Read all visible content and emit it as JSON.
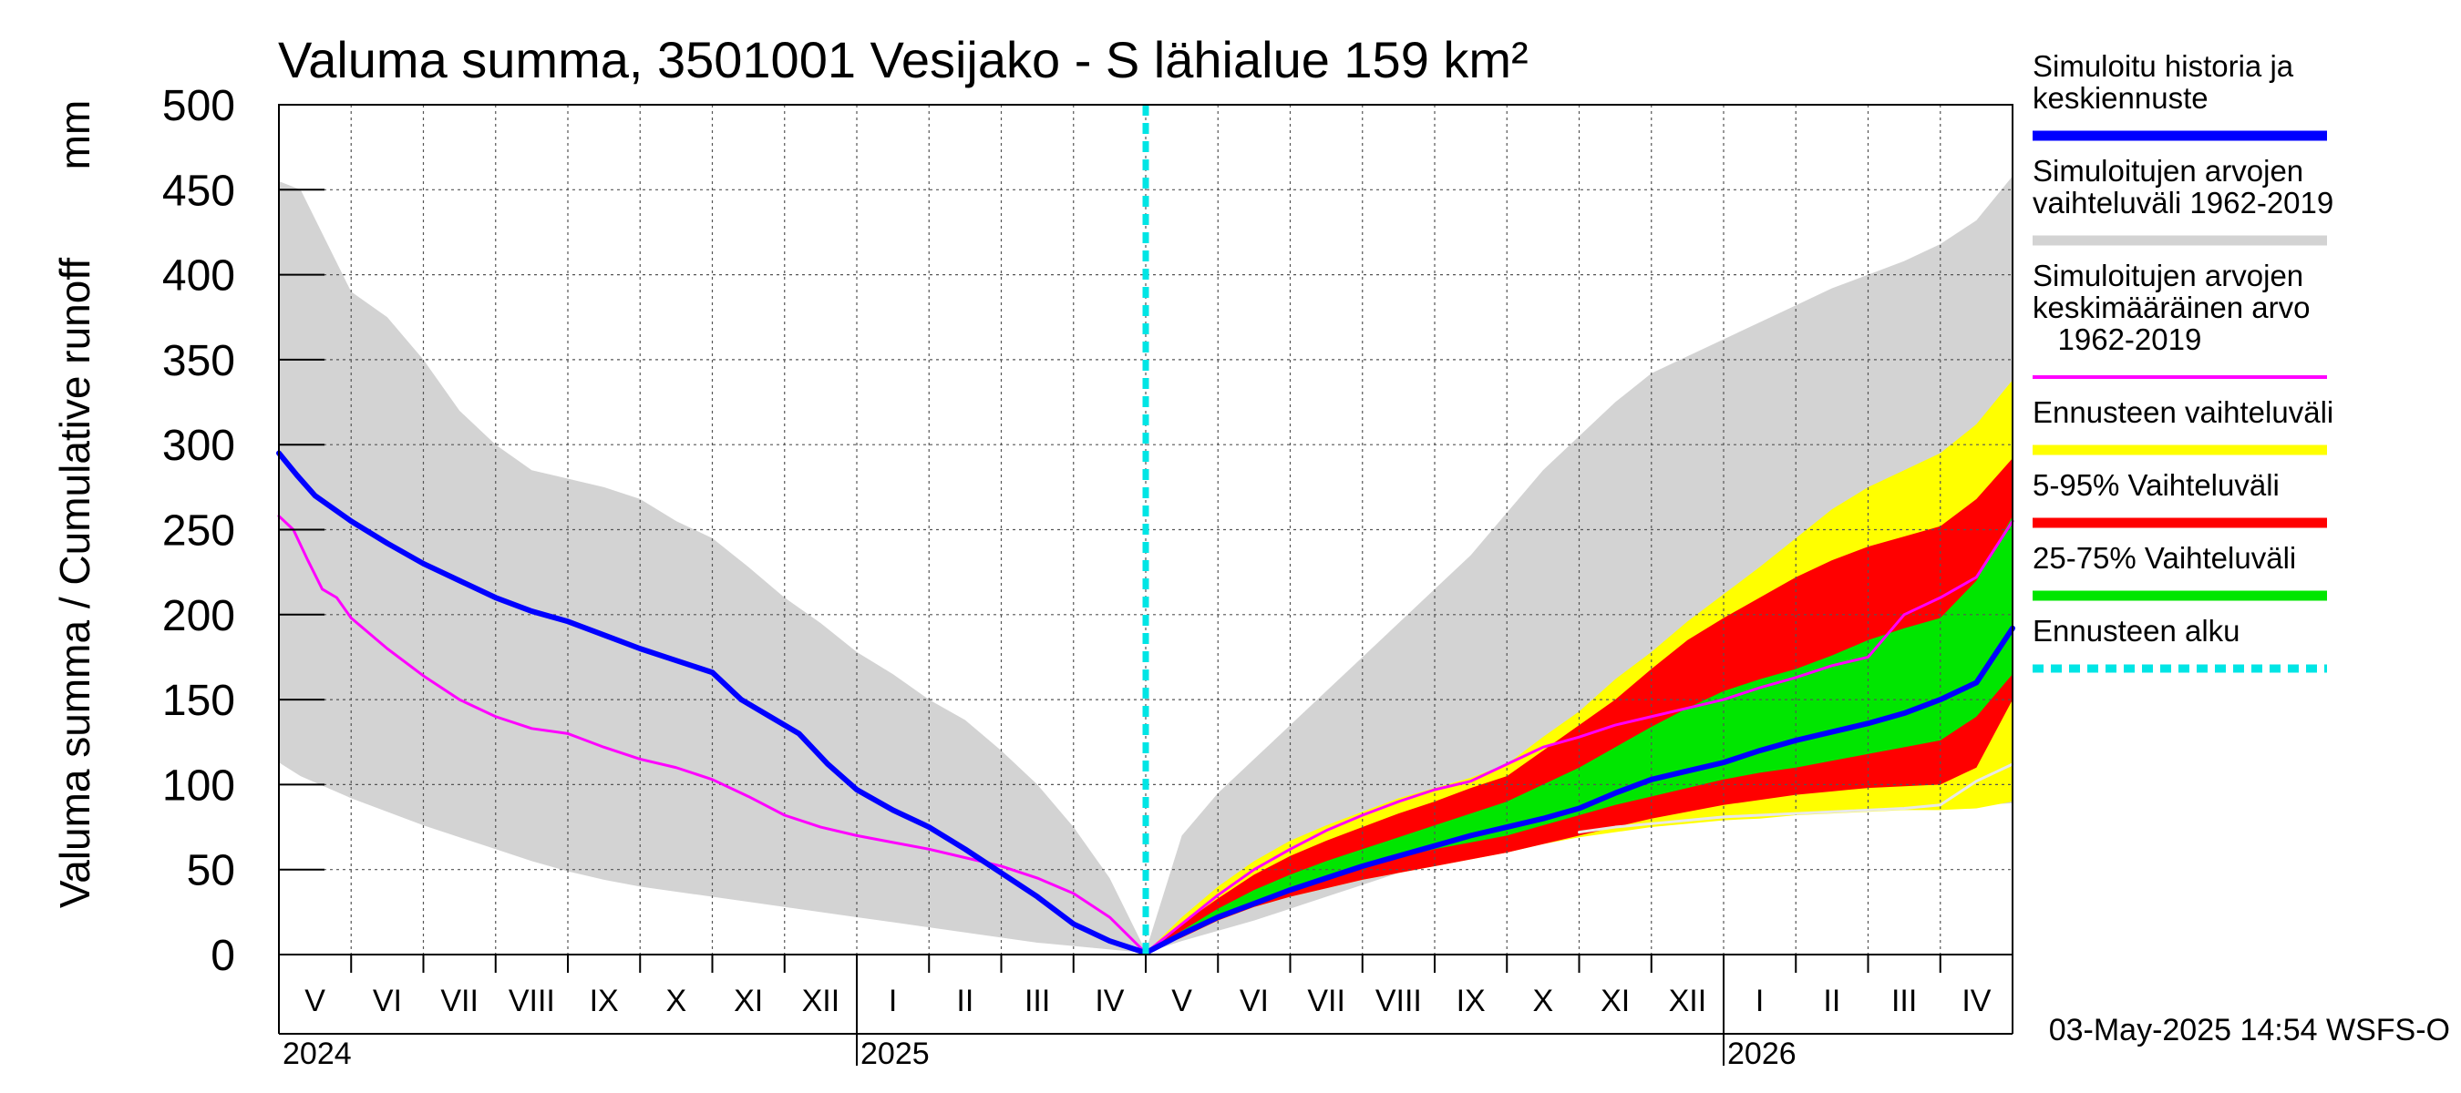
{
  "chart_data": {
    "type": "area",
    "title": "Valuma summa, 3501001 Vesijako - S lähialue 159 km²",
    "ylabel": "Valuma summa / Cumulative runoff",
    "yunit": "mm",
    "ylim": [
      0,
      500
    ],
    "yticks": [
      0,
      50,
      100,
      150,
      200,
      250,
      300,
      350,
      400,
      450,
      500
    ],
    "grid": true,
    "legend_position": "right",
    "x_unit": "months since 1 May 2024",
    "xlim": [
      0,
      24
    ],
    "forecast_start": 12,
    "months": [
      {
        "label": "V",
        "x": 0
      },
      {
        "label": "VI",
        "x": 1
      },
      {
        "label": "VII",
        "x": 2
      },
      {
        "label": "VIII",
        "x": 3
      },
      {
        "label": "IX",
        "x": 4
      },
      {
        "label": "X",
        "x": 5
      },
      {
        "label": "XI",
        "x": 6
      },
      {
        "label": "XII",
        "x": 7
      },
      {
        "label": "I",
        "x": 8
      },
      {
        "label": "II",
        "x": 9
      },
      {
        "label": "III",
        "x": 10
      },
      {
        "label": "IV",
        "x": 11
      },
      {
        "label": "V",
        "x": 12
      },
      {
        "label": "VI",
        "x": 13
      },
      {
        "label": "VII",
        "x": 14
      },
      {
        "label": "VIII",
        "x": 15
      },
      {
        "label": "IX",
        "x": 16
      },
      {
        "label": "X",
        "x": 17
      },
      {
        "label": "XI",
        "x": 18
      },
      {
        "label": "XII",
        "x": 19
      },
      {
        "label": "I",
        "x": 20
      },
      {
        "label": "II",
        "x": 21
      },
      {
        "label": "III",
        "x": 22
      },
      {
        "label": "IV",
        "x": 23
      }
    ],
    "years": [
      {
        "label": "2024",
        "x": 0
      },
      {
        "label": "2025",
        "x": 8
      },
      {
        "label": "2026",
        "x": 20
      }
    ],
    "series": [
      {
        "name": "Simuloitujen arvojen vaihteluväli 1962-2019",
        "kind": "band",
        "color": "#d3d3d3",
        "x": [
          0,
          0.3,
          1,
          1.5,
          2,
          2.5,
          3,
          3.5,
          4,
          4.5,
          5,
          5.5,
          6,
          6.5,
          7,
          7.5,
          8,
          8.5,
          9,
          9.5,
          10,
          10.5,
          11,
          11.5,
          12,
          12.5,
          13,
          13.5,
          14,
          14.5,
          15,
          15.5,
          16,
          16.5,
          17,
          17.5,
          18,
          18.5,
          19,
          19.5,
          20,
          20.5,
          21,
          21.5,
          22,
          22.5,
          23,
          23.5,
          24
        ],
        "upper": [
          455,
          450,
          390,
          375,
          350,
          320,
          300,
          285,
          280,
          275,
          268,
          255,
          245,
          228,
          210,
          195,
          178,
          165,
          150,
          138,
          120,
          100,
          75,
          45,
          2,
          70,
          95,
          115,
          135,
          155,
          175,
          195,
          215,
          235,
          260,
          285,
          305,
          325,
          342,
          352,
          362,
          372,
          382,
          392,
          400,
          408,
          418,
          432,
          458
        ],
        "lower": [
          113,
          105,
          92,
          84,
          76,
          69,
          62,
          55,
          49,
          44,
          40,
          37,
          34,
          31,
          28,
          25,
          22,
          19,
          16,
          13,
          10,
          7,
          5,
          3,
          1,
          8,
          14,
          20,
          27,
          34,
          41,
          48,
          55,
          60,
          65,
          69,
          72,
          75,
          77,
          79,
          81,
          82,
          83,
          84,
          85,
          86,
          87,
          88,
          89
        ]
      },
      {
        "name": "Ennusteen vaihteluväli",
        "kind": "band",
        "color": "#ffff00",
        "x": [
          12,
          12.5,
          13,
          13.5,
          14,
          14.5,
          15,
          15.5,
          16,
          16.5,
          17,
          17.5,
          18,
          18.5,
          19,
          19.5,
          20,
          20.5,
          21,
          21.5,
          22,
          22.5,
          23,
          23.5,
          24
        ],
        "upper": [
          1,
          22,
          40,
          55,
          67,
          76,
          84,
          92,
          98,
          104,
          112,
          128,
          143,
          162,
          178,
          196,
          212,
          228,
          245,
          262,
          275,
          285,
          295,
          312,
          338
        ],
        "lower": [
          1,
          10,
          20,
          28,
          34,
          39,
          44,
          48,
          52,
          56,
          60,
          65,
          69,
          72,
          75,
          77,
          79,
          80,
          82,
          83,
          84,
          85,
          85,
          86,
          90
        ]
      },
      {
        "name": "5-95% Vaihteluväli",
        "kind": "band",
        "color": "#ff0000",
        "x": [
          12,
          12.5,
          13,
          13.5,
          14,
          14.5,
          15,
          15.5,
          16,
          16.5,
          17,
          17.5,
          18,
          18.5,
          19,
          19.5,
          20,
          20.5,
          21,
          21.5,
          22,
          22.5,
          23,
          23.5,
          24
        ],
        "upper": [
          1,
          18,
          33,
          47,
          58,
          67,
          75,
          83,
          90,
          98,
          105,
          120,
          135,
          150,
          168,
          185,
          198,
          210,
          222,
          232,
          240,
          246,
          252,
          268,
          292
        ],
        "lower": [
          1,
          10,
          20,
          28,
          34,
          39,
          44,
          48,
          52,
          56,
          60,
          65,
          70,
          75,
          80,
          84,
          88,
          91,
          94,
          96,
          98,
          99,
          100,
          110,
          150
        ]
      },
      {
        "name": "25-75% Vaihteluväli",
        "kind": "band",
        "color": "#00e600",
        "x": [
          12,
          12.5,
          13,
          13.5,
          14,
          14.5,
          15,
          15.5,
          16,
          16.5,
          17,
          17.5,
          18,
          18.5,
          19,
          19.5,
          20,
          20.5,
          21,
          21.5,
          22,
          22.5,
          23,
          23.5,
          24
        ],
        "upper": [
          1,
          14,
          27,
          38,
          47,
          55,
          62,
          69,
          76,
          83,
          90,
          100,
          110,
          122,
          134,
          145,
          155,
          162,
          168,
          176,
          185,
          192,
          198,
          220,
          258
        ],
        "lower": [
          1,
          12,
          22,
          31,
          38,
          45,
          51,
          57,
          62,
          66,
          70,
          76,
          82,
          88,
          93,
          98,
          103,
          107,
          110,
          114,
          118,
          122,
          126,
          140,
          165
        ]
      },
      {
        "name": "Simuloitujen arvojen keskimääräinen arvo 1962-2019",
        "kind": "line",
        "color": "#ff00ff",
        "x": [
          0,
          0.2,
          0.4,
          0.6,
          0.8,
          1,
          1.5,
          2,
          2.5,
          3,
          3.5,
          4,
          4.5,
          5,
          5.5,
          6,
          6.5,
          7,
          7.5,
          8,
          8.5,
          9,
          9.5,
          10,
          10.5,
          11,
          11.5,
          12,
          12.5,
          13,
          13.5,
          14,
          14.5,
          15,
          15.5,
          16,
          16.5,
          17,
          17.5,
          18,
          18.5,
          19,
          19.5,
          20,
          20.5,
          21,
          21.5,
          22,
          22.5,
          23,
          23.5,
          24
        ],
        "y": [
          258,
          250,
          232,
          215,
          210,
          198,
          180,
          164,
          150,
          140,
          133,
          130,
          122,
          115,
          110,
          103,
          93,
          82,
          75,
          70,
          66,
          62,
          57,
          52,
          45,
          36,
          22,
          1,
          18,
          35,
          50,
          62,
          73,
          82,
          90,
          97,
          102,
          112,
          122,
          128,
          135,
          140,
          145,
          150,
          157,
          163,
          170,
          175,
          200,
          210,
          222,
          255
        ]
      },
      {
        "name": "Simuloitu historia ja keskiennuste",
        "kind": "line",
        "color": "#0000ff",
        "width": 6,
        "x": [
          0,
          0.25,
          0.5,
          1,
          1.5,
          2,
          2.5,
          3,
          3.5,
          4,
          4.5,
          5,
          5.5,
          6,
          6.4,
          6.8,
          7.2,
          7.6,
          8,
          8.5,
          9,
          9.5,
          10,
          10.5,
          11,
          11.5,
          12,
          12.5,
          13,
          13.5,
          14,
          14.5,
          15,
          15.5,
          16,
          16.5,
          17,
          17.5,
          18,
          18.5,
          19,
          19.5,
          20,
          20.5,
          21,
          21.5,
          22,
          22.5,
          23,
          23.5,
          24
        ],
        "y": [
          295,
          282,
          270,
          255,
          242,
          230,
          220,
          210,
          202,
          196,
          188,
          180,
          173,
          166,
          150,
          140,
          130,
          112,
          97,
          85,
          75,
          62,
          48,
          34,
          18,
          8,
          1,
          12,
          22,
          30,
          38,
          45,
          52,
          58,
          64,
          70,
          75,
          80,
          86,
          95,
          103,
          108,
          113,
          120,
          126,
          131,
          136,
          142,
          150,
          160,
          192
        ]
      },
      {
        "name": "min history",
        "kind": "line",
        "color": "#e8e8e8",
        "width": 3,
        "legend": false,
        "x": [
          18,
          18.5,
          19,
          19.5,
          20,
          20.5,
          21,
          21.5,
          22,
          22.5,
          23,
          23.5,
          24
        ],
        "y": [
          72,
          75,
          77,
          79,
          81,
          82,
          83,
          84,
          85,
          86,
          88,
          102,
          112
        ]
      }
    ],
    "legend": [
      {
        "label": [
          "Simuloitu historia ja",
          "keskiennuste"
        ],
        "color": "#0000ff",
        "style": "thick"
      },
      {
        "label": [
          "Simuloitujen arvojen",
          "vaihteluväli 1962-2019"
        ],
        "color": "#d3d3d3",
        "style": "thick"
      },
      {
        "label": [
          "Simuloitujen arvojen",
          "keskimääräinen arvo",
          "   1962-2019"
        ],
        "color": "#ff00ff",
        "style": "thin"
      },
      {
        "label": [
          "Ennusteen vaihteluväli"
        ],
        "color": "#ffff00",
        "style": "thick"
      },
      {
        "label": [
          "5-95% Vaihteluväli"
        ],
        "color": "#ff0000",
        "style": "thick"
      },
      {
        "label": [
          "25-75% Vaihteluväli"
        ],
        "color": "#00e600",
        "style": "thick"
      },
      {
        "label": [
          "Ennusteen alku"
        ],
        "color": "#00e5e5",
        "style": "dashed"
      }
    ],
    "footer": "03-May-2025 14:54 WSFS-O"
  }
}
